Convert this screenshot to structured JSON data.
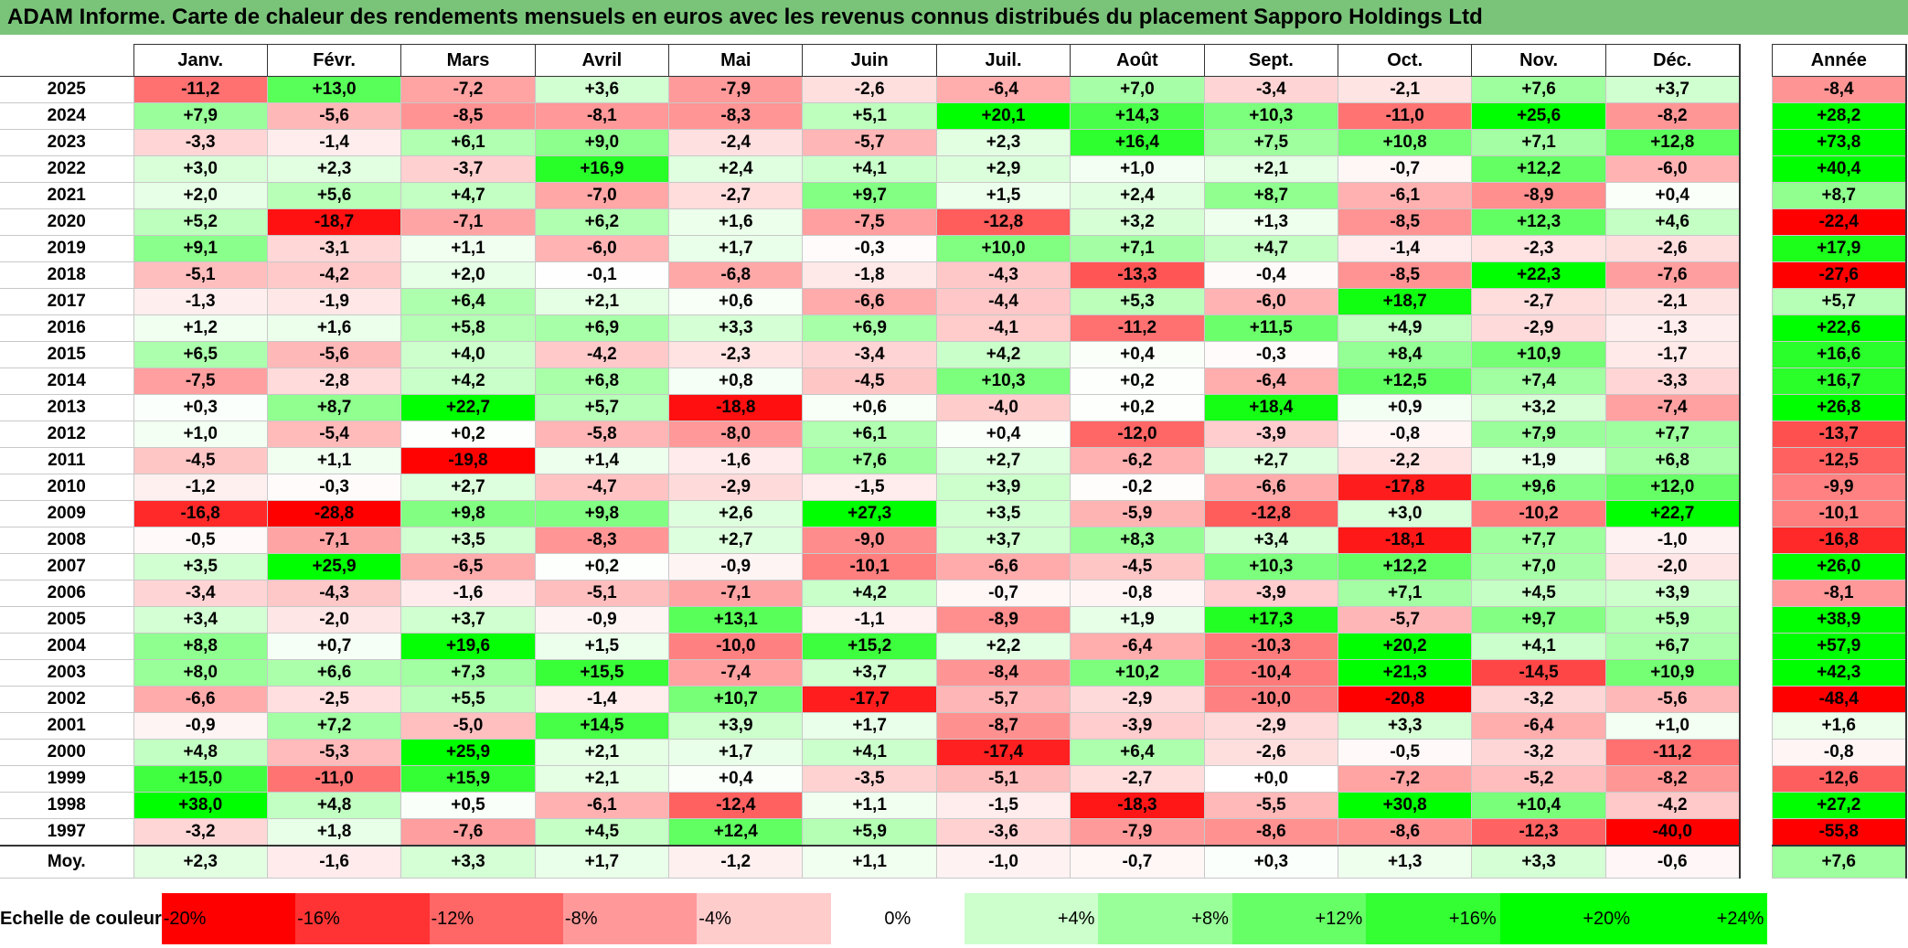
{
  "title": "ADAM Informe. Carte de chaleur des rendements mensuels en euros avec les revenus connus distribués du placement Sapporo Holdings Ltd",
  "chart_data": {
    "type": "heatmap",
    "columns": [
      "Janv.",
      "Févr.",
      "Mars",
      "Avril",
      "Mai",
      "Juin",
      "Juil.",
      "Août",
      "Sept.",
      "Oct.",
      "Nov.",
      "Déc."
    ],
    "year_column": "Année",
    "rows": [
      {
        "year": "2025",
        "months": [
          "-11,2",
          "+13,0",
          "-7,2",
          "+3,6",
          "-7,9",
          "-2,6",
          "-6,4",
          "+7,0",
          "-3,4",
          "-2,1",
          "+7,6",
          "+3,7"
        ],
        "annual": "-8,4"
      },
      {
        "year": "2024",
        "months": [
          "+7,9",
          "-5,6",
          "-8,5",
          "-8,1",
          "-8,3",
          "+5,1",
          "+20,1",
          "+14,3",
          "+10,3",
          "-11,0",
          "+25,6",
          "-8,2"
        ],
        "annual": "+28,2"
      },
      {
        "year": "2023",
        "months": [
          "-3,3",
          "-1,4",
          "+6,1",
          "+9,0",
          "-2,4",
          "-5,7",
          "+2,3",
          "+16,4",
          "+7,5",
          "+10,8",
          "+7,1",
          "+12,8"
        ],
        "annual": "+73,8"
      },
      {
        "year": "2022",
        "months": [
          "+3,0",
          "+2,3",
          "-3,7",
          "+16,9",
          "+2,4",
          "+4,1",
          "+2,9",
          "+1,0",
          "+2,1",
          "-0,7",
          "+12,2",
          "-6,0"
        ],
        "annual": "+40,4"
      },
      {
        "year": "2021",
        "months": [
          "+2,0",
          "+5,6",
          "+4,7",
          "-7,0",
          "-2,7",
          "+9,7",
          "+1,5",
          "+2,4",
          "+8,7",
          "-6,1",
          "-8,9",
          "+0,4"
        ],
        "annual": "+8,7"
      },
      {
        "year": "2020",
        "months": [
          "+5,2",
          "-18,7",
          "-7,1",
          "+6,2",
          "+1,6",
          "-7,5",
          "-12,8",
          "+3,2",
          "+1,3",
          "-8,5",
          "+12,3",
          "+4,6"
        ],
        "annual": "-22,4"
      },
      {
        "year": "2019",
        "months": [
          "+9,1",
          "-3,1",
          "+1,1",
          "-6,0",
          "+1,7",
          "-0,3",
          "+10,0",
          "+7,1",
          "+4,7",
          "-1,4",
          "-2,3",
          "-2,6"
        ],
        "annual": "+17,9"
      },
      {
        "year": "2018",
        "months": [
          "-5,1",
          "-4,2",
          "+2,0",
          "-0,1",
          "-6,8",
          "-1,8",
          "-4,3",
          "-13,3",
          "-0,4",
          "-8,5",
          "+22,3",
          "-7,6"
        ],
        "annual": "-27,6"
      },
      {
        "year": "2017",
        "months": [
          "-1,3",
          "-1,9",
          "+6,4",
          "+2,1",
          "+0,6",
          "-6,6",
          "-4,4",
          "+5,3",
          "-6,0",
          "+18,7",
          "-2,7",
          "-2,1"
        ],
        "annual": "+5,7"
      },
      {
        "year": "2016",
        "months": [
          "+1,2",
          "+1,6",
          "+5,8",
          "+6,9",
          "+3,3",
          "+6,9",
          "-4,1",
          "-11,2",
          "+11,5",
          "+4,9",
          "-2,9",
          "-1,3"
        ],
        "annual": "+22,6"
      },
      {
        "year": "2015",
        "months": [
          "+6,5",
          "-5,6",
          "+4,0",
          "-4,2",
          "-2,3",
          "-3,4",
          "+4,2",
          "+0,4",
          "-0,3",
          "+8,4",
          "+10,9",
          "-1,7"
        ],
        "annual": "+16,6"
      },
      {
        "year": "2014",
        "months": [
          "-7,5",
          "-2,8",
          "+4,2",
          "+6,8",
          "+0,8",
          "-4,5",
          "+10,3",
          "+0,2",
          "-6,4",
          "+12,5",
          "+7,4",
          "-3,3"
        ],
        "annual": "+16,7"
      },
      {
        "year": "2013",
        "months": [
          "+0,3",
          "+8,7",
          "+22,7",
          "+5,7",
          "-18,8",
          "+0,6",
          "-4,0",
          "+0,2",
          "+18,4",
          "+0,9",
          "+3,2",
          "-7,4"
        ],
        "annual": "+26,8"
      },
      {
        "year": "2012",
        "months": [
          "+1,0",
          "-5,4",
          "+0,2",
          "-5,8",
          "-8,0",
          "+6,1",
          "+0,4",
          "-12,0",
          "-3,9",
          "-0,8",
          "+7,9",
          "+7,7"
        ],
        "annual": "-13,7"
      },
      {
        "year": "2011",
        "months": [
          "-4,5",
          "+1,1",
          "-19,8",
          "+1,4",
          "-1,6",
          "+7,6",
          "+2,7",
          "-6,2",
          "+2,7",
          "-2,2",
          "+1,9",
          "+6,8"
        ],
        "annual": "-12,5"
      },
      {
        "year": "2010",
        "months": [
          "-1,2",
          "-0,3",
          "+2,7",
          "-4,7",
          "-2,9",
          "-1,5",
          "+3,9",
          "-0,2",
          "-6,6",
          "-17,8",
          "+9,6",
          "+12,0"
        ],
        "annual": "-9,9"
      },
      {
        "year": "2009",
        "months": [
          "-16,8",
          "-28,8",
          "+9,8",
          "+9,8",
          "+2,6",
          "+27,3",
          "+3,5",
          "-5,9",
          "-12,8",
          "+3,0",
          "-10,2",
          "+22,7"
        ],
        "annual": "-10,1"
      },
      {
        "year": "2008",
        "months": [
          "-0,5",
          "-7,1",
          "+3,5",
          "-8,3",
          "+2,7",
          "-9,0",
          "+3,7",
          "+8,3",
          "+3,4",
          "-18,1",
          "+7,7",
          "-1,0"
        ],
        "annual": "-16,8"
      },
      {
        "year": "2007",
        "months": [
          "+3,5",
          "+25,9",
          "-6,5",
          "+0,2",
          "-0,9",
          "-10,1",
          "-6,6",
          "-4,5",
          "+10,3",
          "+12,2",
          "+7,0",
          "-2,0"
        ],
        "annual": "+26,0"
      },
      {
        "year": "2006",
        "months": [
          "-3,4",
          "-4,3",
          "-1,6",
          "-5,1",
          "-7,1",
          "+4,2",
          "-0,7",
          "-0,8",
          "-3,9",
          "+7,1",
          "+4,5",
          "+3,9"
        ],
        "annual": "-8,1"
      },
      {
        "year": "2005",
        "months": [
          "+3,4",
          "-2,0",
          "+3,7",
          "-0,9",
          "+13,1",
          "-1,1",
          "-8,9",
          "+1,9",
          "+17,3",
          "-5,7",
          "+9,7",
          "+5,9"
        ],
        "annual": "+38,9"
      },
      {
        "year": "2004",
        "months": [
          "+8,8",
          "+0,7",
          "+19,6",
          "+1,5",
          "-10,0",
          "+15,2",
          "+2,2",
          "-6,4",
          "-10,3",
          "+20,2",
          "+4,1",
          "+6,7"
        ],
        "annual": "+57,9"
      },
      {
        "year": "2003",
        "months": [
          "+8,0",
          "+6,6",
          "+7,3",
          "+15,5",
          "-7,4",
          "+3,7",
          "-8,4",
          "+10,2",
          "-10,4",
          "+21,3",
          "-14,5",
          "+10,9"
        ],
        "annual": "+42,3"
      },
      {
        "year": "2002",
        "months": [
          "-6,6",
          "-2,5",
          "+5,5",
          "-1,4",
          "+10,7",
          "-17,7",
          "-5,7",
          "-2,9",
          "-10,0",
          "-20,8",
          "-3,2",
          "-5,6"
        ],
        "annual": "-48,4"
      },
      {
        "year": "2001",
        "months": [
          "-0,9",
          "+7,2",
          "-5,0",
          "+14,5",
          "+3,9",
          "+1,7",
          "-8,7",
          "-3,9",
          "-2,9",
          "+3,3",
          "-6,4",
          "+1,0"
        ],
        "annual": "+1,6"
      },
      {
        "year": "2000",
        "months": [
          "+4,8",
          "-5,3",
          "+25,9",
          "+2,1",
          "+1,7",
          "+4,1",
          "-17,4",
          "+6,4",
          "-2,6",
          "-0,5",
          "-3,2",
          "-11,2"
        ],
        "annual": "-0,8"
      },
      {
        "year": "1999",
        "months": [
          "+15,0",
          "-11,0",
          "+15,9",
          "+2,1",
          "+0,4",
          "-3,5",
          "-5,1",
          "-2,7",
          "+0,0",
          "-7,2",
          "-5,2",
          "-8,2"
        ],
        "annual": "-12,6"
      },
      {
        "year": "1998",
        "months": [
          "+38,0",
          "+4,8",
          "+0,5",
          "-6,1",
          "-12,4",
          "+1,1",
          "-1,5",
          "-18,3",
          "-5,5",
          "+30,8",
          "+10,4",
          "-4,2"
        ],
        "annual": "+27,2"
      },
      {
        "year": "1997",
        "months": [
          "-3,2",
          "+1,8",
          "-7,6",
          "+4,5",
          "+12,4",
          "+5,9",
          "-3,6",
          "-7,9",
          "-8,6",
          "-8,6",
          "-12,3",
          "-40,0"
        ],
        "annual": "-55,8"
      }
    ],
    "average": {
      "label": "Moy.",
      "months": [
        "+2,3",
        "-1,6",
        "+3,3",
        "+1,7",
        "-1,2",
        "+1,1",
        "-1,0",
        "-0,7",
        "+0,3",
        "+1,3",
        "+3,3",
        "-0,6"
      ],
      "annual": "+7,6"
    },
    "scale": {
      "label": "Echelle de couleur",
      "steps": [
        {
          "label": "-20%",
          "value": -20,
          "color": "#ff0000"
        },
        {
          "label": "-16%",
          "value": -16,
          "color": "#ff3333"
        },
        {
          "label": "-12%",
          "value": -12,
          "color": "#ff6666"
        },
        {
          "label": "-8%",
          "value": -8,
          "color": "#ff9999"
        },
        {
          "label": "-4%",
          "value": -4,
          "color": "#ffcccc"
        },
        {
          "label": "0%",
          "value": 0,
          "color": "#ffffff"
        },
        {
          "label": "+4%",
          "value": 4,
          "color": "#ccffcc"
        },
        {
          "label": "+8%",
          "value": 8,
          "color": "#99ff99"
        },
        {
          "label": "+12%",
          "value": 12,
          "color": "#66ff66"
        },
        {
          "label": "+16%",
          "value": 16,
          "color": "#33ff33"
        },
        {
          "label": "+20%",
          "value": 20,
          "color": "#00ff00"
        },
        {
          "label": "+24%",
          "value": 24,
          "color": "#00ff00"
        }
      ]
    },
    "colors": {
      "negative_max": "#ff0000",
      "neutral": "#ffffff",
      "positive_max": "#00ff00",
      "title_bar": "#7ac47a"
    }
  }
}
